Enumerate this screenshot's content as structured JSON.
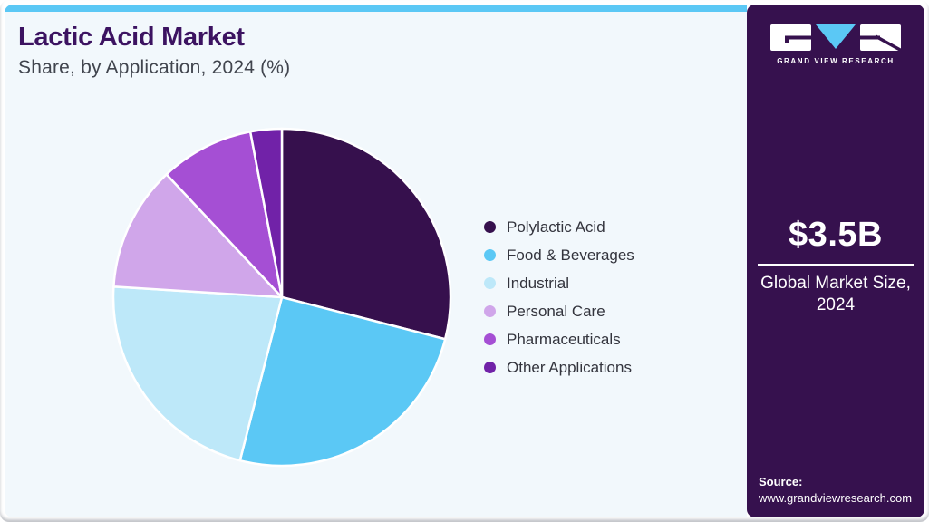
{
  "header": {
    "title": "Lactic Acid Market",
    "subtitle": "Share, by Application, 2024 (%)"
  },
  "chart_data": {
    "type": "pie",
    "title": "Lactic Acid Market",
    "subtitle": "Share, by Application, 2024 (%)",
    "unit": "%",
    "start_angle": "12-oclock",
    "direction": "clockwise",
    "legend_position": "right",
    "categories": [
      "Polylactic Acid",
      "Food & Beverages",
      "Industrial",
      "Personal Care",
      "Pharmaceuticals",
      "Other Applications"
    ],
    "values": [
      29,
      25,
      22,
      12,
      9,
      3
    ],
    "colors": [
      "#36104d",
      "#5bc8f5",
      "#bde8f9",
      "#d0a6ea",
      "#a54fd4",
      "#7122a8"
    ]
  },
  "sidebar": {
    "logo_text": "GRAND VIEW RESEARCH",
    "market_size_value": "$3.5B",
    "market_size_caption": "Global Market Size, 2024",
    "source_label": "Source:",
    "source_url": "www.grandviewresearch.com"
  },
  "theme": {
    "accent_bar": "#5bc8f5",
    "main_bg": "#f2f8fc",
    "sidebar_bg": "#36114e",
    "title_color": "#3c1361",
    "subtitle_color": "#41454e",
    "legend_text_color": "#33343d",
    "slice_border": "#ffffff"
  }
}
